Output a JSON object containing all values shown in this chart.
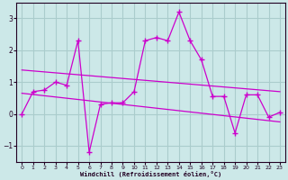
{
  "xlabel": "Windchill (Refroidissement éolien,°C)",
  "bg_color": "#cce8e8",
  "grid_color": "#aacccc",
  "line_color": "#cc00cc",
  "x_data": [
    0,
    1,
    2,
    3,
    4,
    5,
    6,
    7,
    8,
    9,
    10,
    11,
    12,
    13,
    14,
    15,
    16,
    17,
    18,
    19,
    20,
    21,
    22,
    23
  ],
  "y_data": [
    0.0,
    0.7,
    0.75,
    1.0,
    0.9,
    2.3,
    -1.2,
    0.3,
    0.35,
    0.35,
    0.7,
    2.3,
    2.4,
    2.3,
    3.2,
    2.3,
    1.7,
    0.55,
    0.55,
    -0.6,
    0.6,
    0.6,
    -0.1,
    0.05
  ],
  "trend1_x": [
    0,
    23
  ],
  "trend1_y": [
    1.38,
    0.7
  ],
  "trend2_x": [
    0,
    23
  ],
  "trend2_y": [
    0.65,
    -0.25
  ],
  "xlim": [
    -0.5,
    23.5
  ],
  "ylim": [
    -1.5,
    3.5
  ],
  "yticks": [
    -1,
    0,
    1,
    2,
    3
  ],
  "xticks": [
    0,
    1,
    2,
    3,
    4,
    5,
    6,
    7,
    8,
    9,
    10,
    11,
    12,
    13,
    14,
    15,
    16,
    17,
    18,
    19,
    20,
    21,
    22,
    23
  ]
}
